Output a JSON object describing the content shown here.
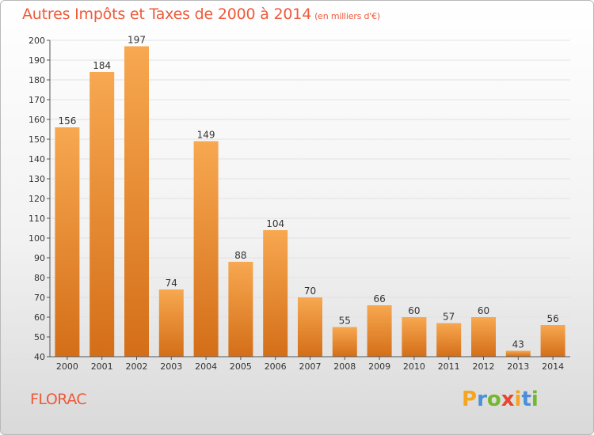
{
  "title": "Autres Impôts et Taxes de 2000 à 2014",
  "unit_label": "(en milliers d'€)",
  "commune": "FLORAC",
  "logo": {
    "letters": [
      "P",
      "r",
      "o",
      "x",
      "i",
      "t",
      "i"
    ],
    "colors": [
      "#f4a623",
      "#4a8fd8",
      "#74b72e",
      "#e8452c",
      "#f4a623",
      "#4a8fd8",
      "#74b72e"
    ]
  },
  "colors": {
    "bar_light": "#f7a850",
    "bar_dark": "#d46e18",
    "title": "#ee5a3a"
  },
  "chart_data": {
    "type": "bar",
    "categories": [
      "2000",
      "2001",
      "2002",
      "2003",
      "2004",
      "2005",
      "2006",
      "2007",
      "2008",
      "2009",
      "2010",
      "2011",
      "2012",
      "2013",
      "2014"
    ],
    "values": [
      156,
      184,
      197,
      74,
      149,
      88,
      104,
      70,
      55,
      66,
      60,
      57,
      60,
      43,
      56
    ],
    "ylim": [
      40,
      200
    ],
    "yticks": [
      40,
      50,
      60,
      70,
      80,
      90,
      100,
      110,
      120,
      130,
      140,
      150,
      160,
      170,
      180,
      190,
      200
    ],
    "grid": true
  }
}
